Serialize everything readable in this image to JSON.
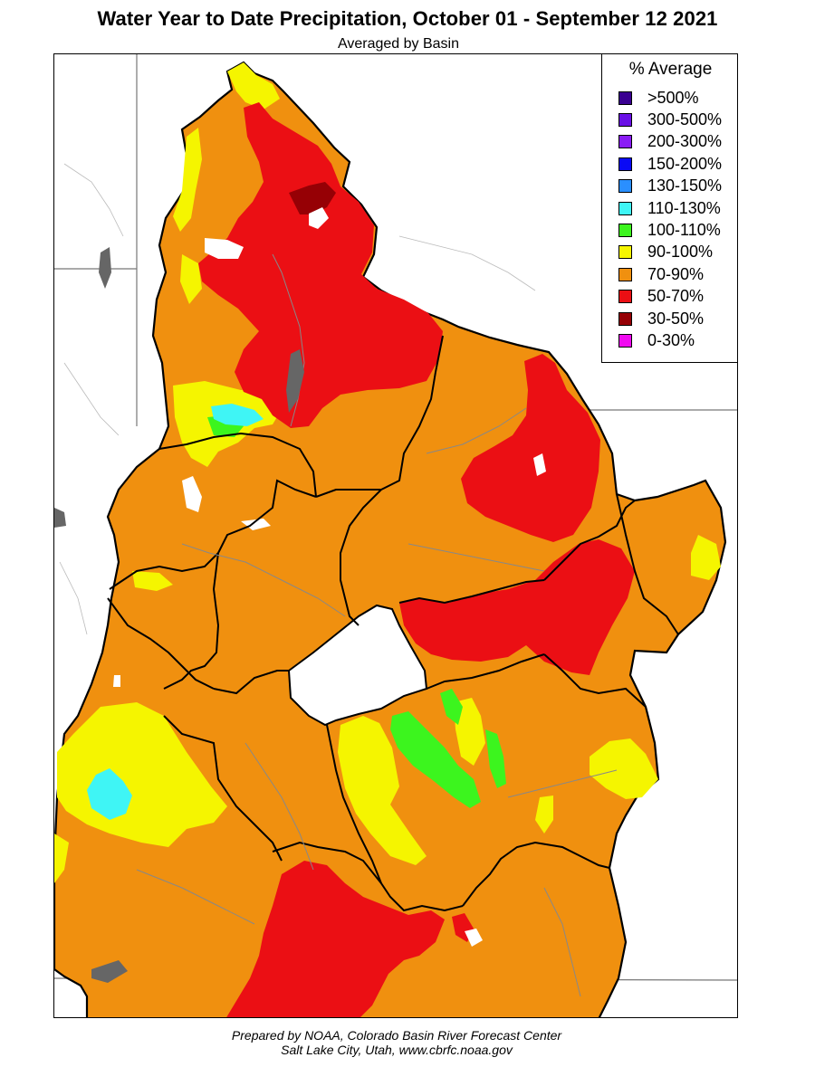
{
  "title": "Water Year to Date Precipitation, October 01  - September 12 2021",
  "subtitle": "Averaged by Basin",
  "legend": {
    "title": "% Average",
    "items": [
      {
        "label": ">500%",
        "color": "#3a0091"
      },
      {
        "label": "300-500%",
        "color": "#6a10e6"
      },
      {
        "label": "200-300%",
        "color": "#8a1cf5"
      },
      {
        "label": "150-200%",
        "color": "#0a0af5"
      },
      {
        "label": "130-150%",
        "color": "#2a8fff"
      },
      {
        "label": "110-130%",
        "color": "#3ff5f5"
      },
      {
        "label": "100-110%",
        "color": "#3cf51e"
      },
      {
        "label": "90-100%",
        "color": "#f5f500"
      },
      {
        "label": "70-90%",
        "color": "#f0900f"
      },
      {
        "label": "50-70%",
        "color": "#eb0f14"
      },
      {
        "label": "30-50%",
        "color": "#960005"
      },
      {
        "label": "0-30%",
        "color": "#f00af0"
      }
    ]
  },
  "footer": {
    "line1": "Prepared by NOAA, Colorado Basin River Forecast Center",
    "line2": "Salt Lake City, Utah, www.cbrfc.noaa.gov"
  }
}
